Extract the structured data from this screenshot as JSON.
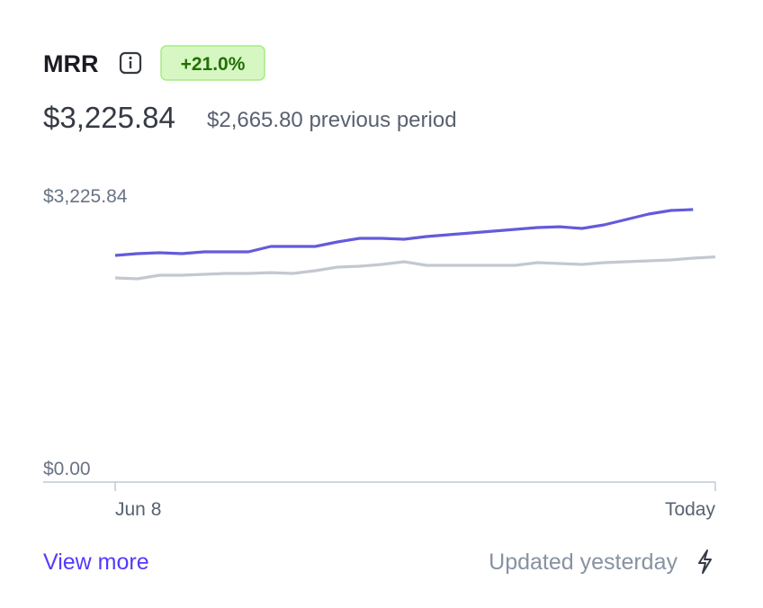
{
  "header": {
    "title": "MRR",
    "badge": "+21.0%",
    "value": "$3,225.84",
    "previous": "$2,665.80 previous period"
  },
  "chart_data": {
    "type": "line",
    "categories": [
      "Jun 8",
      null,
      null,
      null,
      null,
      null,
      null,
      null,
      null,
      null,
      null,
      null,
      null,
      null,
      null,
      null,
      null,
      null,
      null,
      null,
      null,
      null,
      null,
      null,
      null,
      null,
      null,
      "Today"
    ],
    "series": [
      {
        "color": "#635bdb",
        "values": [
          2683,
          2704,
          2715,
          2704,
          2725,
          2725,
          2725,
          2789,
          2789,
          2789,
          2843,
          2885,
          2885,
          2874,
          2906,
          2928,
          2949,
          2970,
          2992,
          3013,
          3023,
          3002,
          3045,
          3109,
          3173,
          3215,
          3225.84,
          null
        ]
      },
      {
        "color": "#c3c8d0",
        "values": [
          2417,
          2406,
          2449,
          2449,
          2459,
          2470,
          2470,
          2480,
          2470,
          2502,
          2544,
          2555,
          2576,
          2608,
          2566,
          2566,
          2566,
          2566,
          2566,
          2598,
          2587,
          2576,
          2598,
          2608,
          2619,
          2630,
          2651,
          2665.8
        ]
      }
    ],
    "ylim": [
      0,
      3225.84
    ],
    "yticks": [
      {
        "value": 0,
        "label": "$0.00"
      },
      {
        "value": 3225.84,
        "label": "$3,225.84"
      }
    ]
  },
  "footer": {
    "link": "View more",
    "status": "Updated yesterday"
  }
}
